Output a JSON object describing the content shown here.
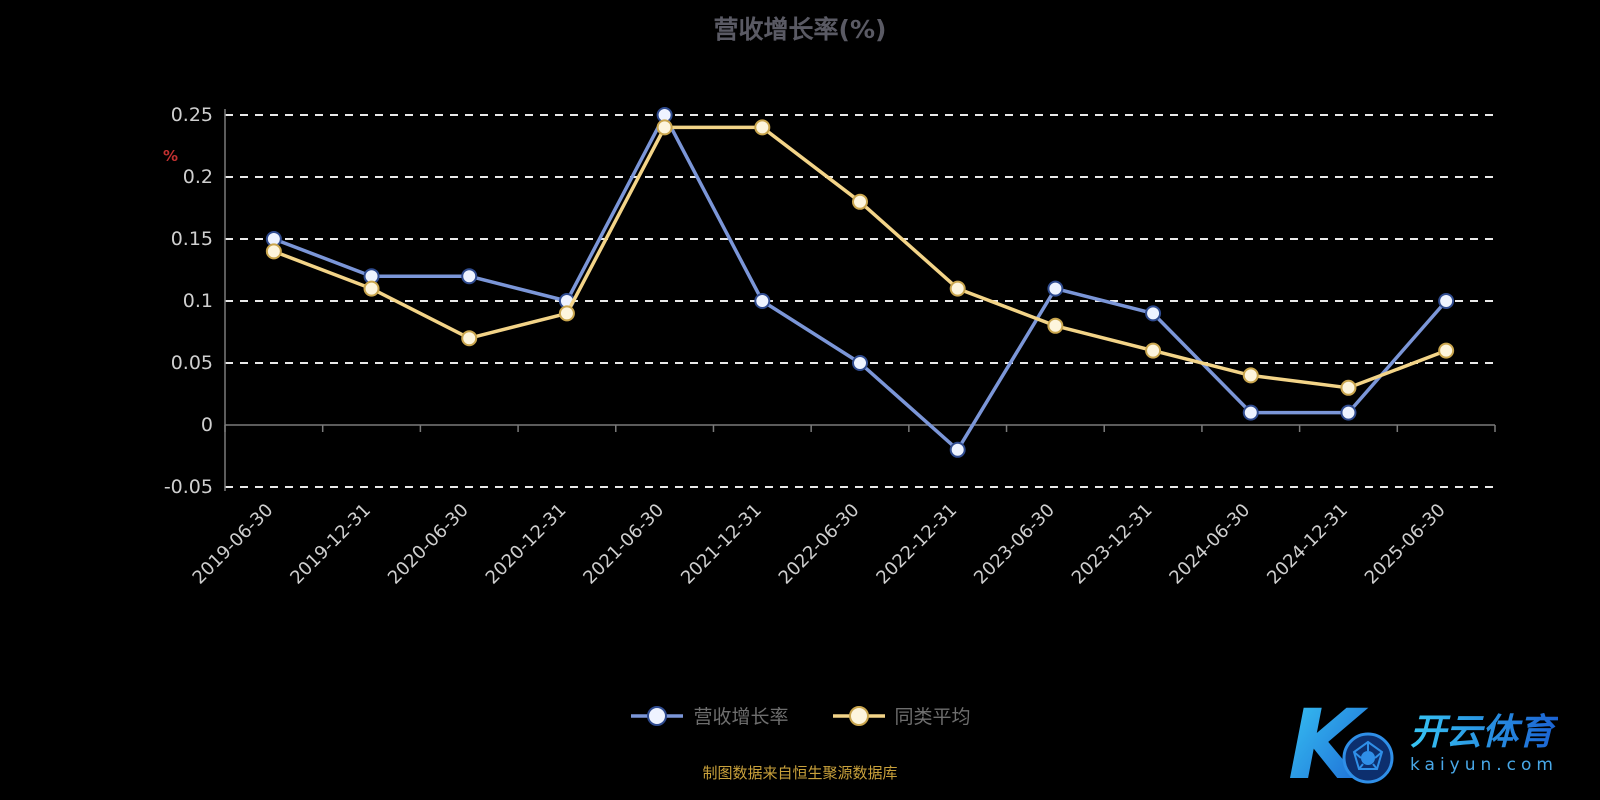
{
  "title": "营收增长率(%)",
  "y_axis_unit": "%",
  "footer": "制图数据来自恒生聚源数据库",
  "watermark": {
    "letter": "K",
    "brand": "开云体育",
    "domain": "kaiyun.com"
  },
  "legend": [
    {
      "label": "营收增长率",
      "line_color": "#7b96d8",
      "marker_fill": "#eef3ff",
      "marker_stroke": "#2f4b8f"
    },
    {
      "label": "同类平均",
      "line_color": "#f3d488",
      "marker_fill": "#fdf5dd",
      "marker_stroke": "#caa64e"
    }
  ],
  "chart_data": {
    "type": "line",
    "title": "营收增长率(%)",
    "xlabel": "",
    "ylabel": "%",
    "grid": true,
    "legend_position": "bottom",
    "ylim": [
      -0.05,
      0.25
    ],
    "yticks": [
      0.25,
      0.2,
      0.15,
      0.1,
      0.05,
      0,
      -0.05
    ],
    "categories": [
      "2019-06-30",
      "2019-12-31",
      "2020-06-30",
      "2020-12-31",
      "2021-06-30",
      "2021-12-31",
      "2022-06-30",
      "2022-12-31",
      "2023-06-30",
      "2023-12-31",
      "2024-06-30",
      "2024-12-31",
      "2025-06-30"
    ],
    "series": [
      {
        "name": "营收增长率",
        "color": "#7b96d8",
        "marker_fill": "#eef3ff",
        "marker_stroke": "#2f4b8f",
        "values": [
          0.15,
          0.12,
          0.12,
          0.1,
          0.25,
          0.1,
          0.05,
          -0.02,
          0.11,
          0.09,
          0.01,
          0.01,
          0.1
        ]
      },
      {
        "name": "同类平均",
        "color": "#f3d488",
        "marker_fill": "#fdf5dd",
        "marker_stroke": "#caa64e",
        "values": [
          0.14,
          0.11,
          0.07,
          0.09,
          0.24,
          0.24,
          0.18,
          0.11,
          0.08,
          0.06,
          0.04,
          0.03,
          0.06
        ]
      }
    ],
    "colors": {
      "grid_line": "#e9e9e9",
      "axis_line": "#7a7a7a",
      "tick_label": "#cfcfcf",
      "title": "#5a5a64",
      "footer": "#c9a13b"
    }
  }
}
